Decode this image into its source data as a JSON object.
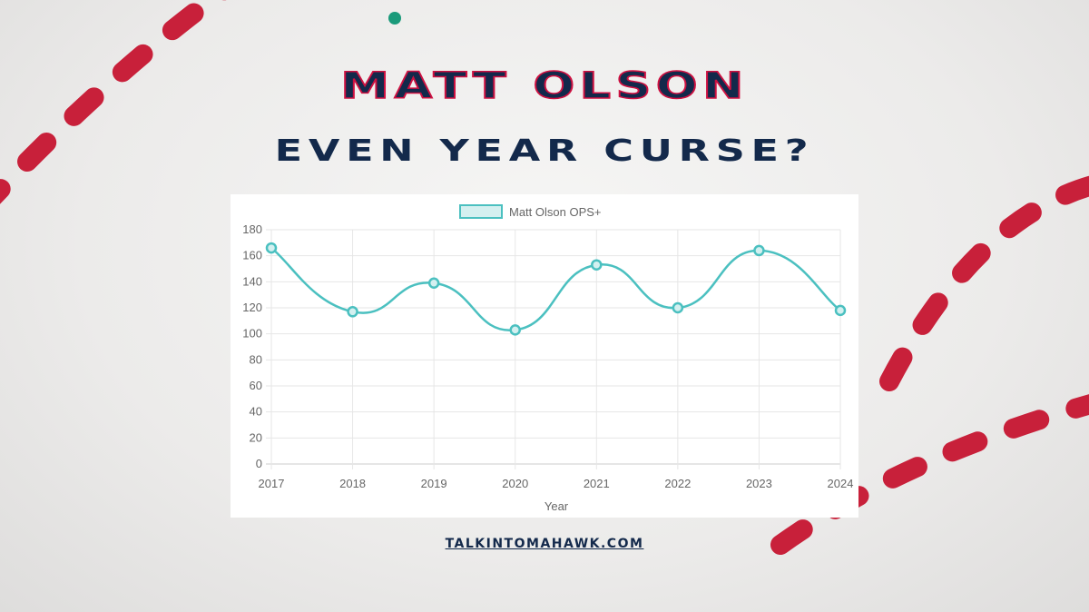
{
  "header": {
    "title": "MATT OLSON",
    "subtitle": "EVEN YEAR CURSE?"
  },
  "footer": {
    "site": "TALKINTOMAHAWK.COM"
  },
  "colors": {
    "title": "#13294b",
    "title_outline": "#ce1141",
    "line": "#4bc0c0",
    "legend_fill": "#d4f0f0"
  },
  "chart_data": {
    "type": "line",
    "categories": [
      "2017",
      "2018",
      "2019",
      "2020",
      "2021",
      "2022",
      "2023",
      "2024"
    ],
    "series": [
      {
        "name": "Matt Olson OPS+",
        "values": [
          166,
          117,
          139,
          103,
          153,
          120,
          164,
          118
        ]
      }
    ],
    "xlabel": "Year",
    "ylabel": "",
    "ylim": [
      0,
      180
    ],
    "yticks": [
      "0",
      "20",
      "40",
      "60",
      "80",
      "100",
      "120",
      "140",
      "160",
      "180"
    ],
    "grid": true,
    "legend": "top",
    "curve": "smooth"
  }
}
